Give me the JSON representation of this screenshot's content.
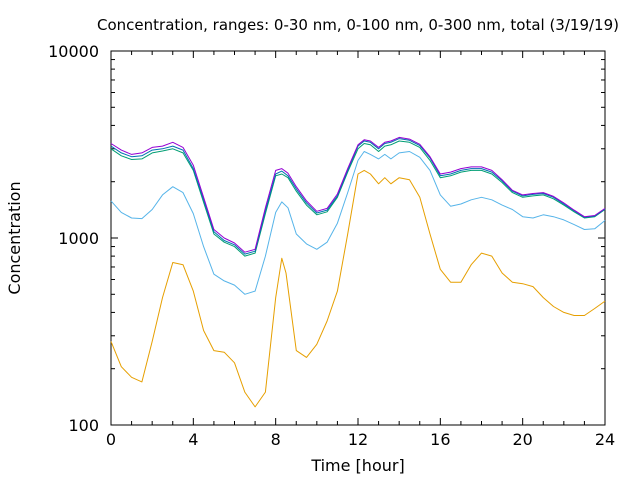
{
  "chart_data": {
    "type": "line",
    "title": "Concentration, ranges: 0-30 nm, 0-100 nm, 0-300 nm, total (3/19/19)",
    "xlabel": "Time [hour]",
    "ylabel": "Concentration",
    "xlim": [
      0,
      24
    ],
    "ylim": [
      100,
      10000
    ],
    "yscale": "log",
    "grid": false,
    "xticks": [
      0,
      4,
      8,
      12,
      16,
      20,
      24
    ],
    "xtick_labels": [
      "0",
      "4",
      "8",
      "12",
      "16",
      "20",
      "24"
    ],
    "yticks": [
      100,
      1000,
      10000
    ],
    "ytick_labels": [
      "100",
      "1000",
      "10000"
    ],
    "series": [
      {
        "color": "#e69f00",
        "x": [
          0,
          0.5,
          1,
          1.5,
          2,
          2.5,
          3,
          3.5,
          4,
          4.5,
          5,
          5.5,
          6,
          6.5,
          7,
          7.5,
          8,
          8.3,
          8.5,
          9,
          9.5,
          10,
          10.5,
          11,
          11.5,
          12,
          12.3,
          12.6,
          13,
          13.3,
          13.6,
          14,
          14.5,
          15,
          15.5,
          16,
          16.5,
          17,
          17.5,
          18,
          18.5,
          19,
          19.5,
          20,
          20.5,
          21,
          21.5,
          22,
          22.5,
          23,
          23.5,
          24
        ],
        "values": [
          280,
          205,
          180,
          170,
          280,
          480,
          740,
          720,
          520,
          320,
          250,
          245,
          215,
          150,
          125,
          150,
          480,
          780,
          650,
          250,
          230,
          270,
          360,
          520,
          1050,
          2200,
          2300,
          2200,
          1950,
          2100,
          1950,
          2100,
          2050,
          1650,
          1050,
          680,
          580,
          580,
          720,
          830,
          800,
          650,
          580,
          570,
          550,
          480,
          430,
          400,
          385,
          385,
          420,
          460
        ]
      },
      {
        "color": "#56b4e9",
        "x": [
          0,
          0.5,
          1,
          1.5,
          2,
          2.5,
          3,
          3.5,
          4,
          4.5,
          5,
          5.5,
          6,
          6.5,
          7,
          7.5,
          8,
          8.3,
          8.6,
          9,
          9.5,
          10,
          10.5,
          11,
          11.5,
          12,
          12.3,
          12.6,
          13,
          13.3,
          13.6,
          14,
          14.5,
          15,
          15.5,
          16,
          16.5,
          17,
          17.5,
          18,
          18.5,
          19,
          19.5,
          20,
          20.5,
          21,
          21.5,
          22,
          22.5,
          23,
          23.5,
          24
        ],
        "values": [
          1580,
          1370,
          1280,
          1270,
          1420,
          1700,
          1880,
          1750,
          1350,
          900,
          640,
          590,
          560,
          500,
          520,
          800,
          1370,
          1560,
          1450,
          1050,
          930,
          870,
          950,
          1200,
          1750,
          2600,
          2900,
          2800,
          2650,
          2800,
          2650,
          2850,
          2900,
          2700,
          2300,
          1700,
          1480,
          1520,
          1600,
          1650,
          1600,
          1500,
          1420,
          1300,
          1280,
          1330,
          1300,
          1250,
          1180,
          1110,
          1120,
          1240
        ]
      },
      {
        "color": "#009e73",
        "x": [
          0,
          0.5,
          1,
          1.5,
          2,
          2.5,
          3,
          3.5,
          4,
          4.5,
          5,
          5.5,
          6,
          6.5,
          7,
          7.5,
          8,
          8.3,
          8.6,
          9,
          9.5,
          10,
          10.5,
          11,
          11.5,
          12,
          12.3,
          12.6,
          13,
          13.3,
          13.6,
          14,
          14.5,
          15,
          15.5,
          16,
          16.5,
          17,
          17.5,
          18,
          18.5,
          19,
          19.5,
          20,
          20.5,
          21,
          21.5,
          22,
          22.5,
          23,
          23.5,
          24
        ],
        "values": [
          3000,
          2750,
          2630,
          2650,
          2850,
          2920,
          3000,
          2850,
          2300,
          1550,
          1050,
          950,
          900,
          800,
          830,
          1350,
          2150,
          2200,
          2100,
          1780,
          1500,
          1330,
          1380,
          1650,
          2250,
          3000,
          3200,
          3150,
          2900,
          3100,
          3150,
          3300,
          3250,
          3050,
          2600,
          2100,
          2150,
          2250,
          2300,
          2300,
          2200,
          1980,
          1750,
          1650,
          1680,
          1700,
          1620,
          1500,
          1380,
          1280,
          1300,
          1420
        ]
      },
      {
        "color": "#0072b2",
        "x": [
          0,
          0.5,
          1,
          1.5,
          2,
          2.5,
          3,
          3.5,
          4,
          4.5,
          5,
          5.5,
          6,
          6.5,
          7,
          7.5,
          8,
          8.3,
          8.6,
          9,
          9.5,
          10,
          10.5,
          11,
          11.5,
          12,
          12.3,
          12.6,
          13,
          13.3,
          13.6,
          14,
          14.5,
          15,
          15.5,
          16,
          16.5,
          17,
          17.5,
          18,
          18.5,
          19,
          19.5,
          20,
          20.5,
          21,
          21.5,
          22,
          22.5,
          23,
          23.5,
          24
        ],
        "values": [
          3100,
          2850,
          2720,
          2750,
          2950,
          3000,
          3100,
          2950,
          2350,
          1600,
          1080,
          970,
          920,
          820,
          850,
          1400,
          2200,
          2280,
          2150,
          1830,
          1540,
          1360,
          1410,
          1680,
          2300,
          3100,
          3300,
          3250,
          3000,
          3200,
          3250,
          3400,
          3330,
          3120,
          2680,
          2150,
          2200,
          2300,
          2350,
          2350,
          2250,
          2020,
          1780,
          1680,
          1710,
          1730,
          1650,
          1520,
          1400,
          1290,
          1310,
          1430
        ]
      },
      {
        "color": "#9400d3",
        "x": [
          0,
          0.5,
          1,
          1.5,
          2,
          2.5,
          3,
          3.5,
          4,
          4.5,
          5,
          5.5,
          6,
          6.5,
          7,
          7.5,
          8,
          8.3,
          8.6,
          9,
          9.5,
          10,
          10.5,
          11,
          11.5,
          12,
          12.3,
          12.6,
          13,
          13.3,
          13.6,
          14,
          14.5,
          15,
          15.5,
          16,
          16.5,
          17,
          17.5,
          18,
          18.5,
          19,
          19.5,
          20,
          20.5,
          21,
          21.5,
          22,
          22.5,
          23,
          23.5,
          24
        ],
        "values": [
          3200,
          2950,
          2800,
          2850,
          3050,
          3100,
          3250,
          3050,
          2450,
          1650,
          1110,
          1000,
          940,
          840,
          870,
          1450,
          2300,
          2350,
          2220,
          1880,
          1580,
          1390,
          1440,
          1720,
          2350,
          3150,
          3350,
          3300,
          3050,
          3250,
          3300,
          3450,
          3380,
          3170,
          2720,
          2200,
          2250,
          2350,
          2400,
          2400,
          2300,
          2050,
          1800,
          1700,
          1730,
          1750,
          1670,
          1540,
          1410,
          1300,
          1320,
          1440
        ]
      }
    ]
  }
}
